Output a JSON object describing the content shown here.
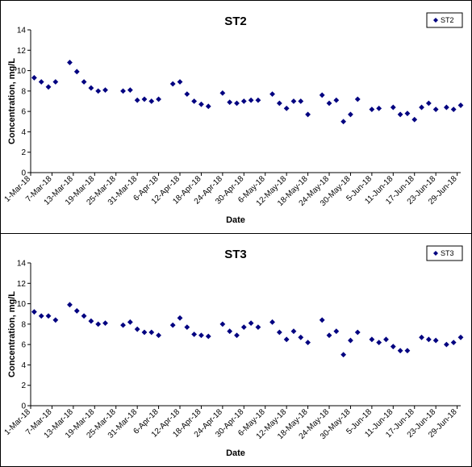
{
  "chart_data": [
    {
      "type": "scatter",
      "title": "ST2",
      "xlabel": "Date",
      "ylabel": "Concentration, mg/L",
      "ylim": [
        0,
        14
      ],
      "yticks": [
        0,
        2,
        4,
        6,
        8,
        10,
        12,
        14
      ],
      "xlim": [
        "2018-03-01",
        "2018-06-30"
      ],
      "xtick_labels": [
        "1-Mar-18",
        "7-Mar-18",
        "13-Mar-18",
        "19-Mar-18",
        "25-Mar-18",
        "31-Mar-18",
        "6-Apr-18",
        "12-Apr-18",
        "18-Apr-18",
        "24-Apr-18",
        "30-Apr-18",
        "6-May-18",
        "12-May-18",
        "18-May-18",
        "24-May-18",
        "30-May-18",
        "5-Jun-18",
        "11-Jun-18",
        "17-Jun-18",
        "23-Jun-18",
        "29-Jun-18"
      ],
      "grid": false,
      "legend_position": "top-right",
      "marker_color": "#000080",
      "series": [
        {
          "name": "ST2",
          "x": [
            "2018-03-02",
            "2018-03-04",
            "2018-03-06",
            "2018-03-08",
            "2018-03-12",
            "2018-03-14",
            "2018-03-16",
            "2018-03-18",
            "2018-03-20",
            "2018-03-22",
            "2018-03-27",
            "2018-03-29",
            "2018-03-31",
            "2018-04-02",
            "2018-04-04",
            "2018-04-06",
            "2018-04-10",
            "2018-04-12",
            "2018-04-14",
            "2018-04-16",
            "2018-04-18",
            "2018-04-20",
            "2018-04-24",
            "2018-04-26",
            "2018-04-28",
            "2018-04-30",
            "2018-05-02",
            "2018-05-04",
            "2018-05-08",
            "2018-05-10",
            "2018-05-12",
            "2018-05-14",
            "2018-05-16",
            "2018-05-18",
            "2018-05-22",
            "2018-05-24",
            "2018-05-26",
            "2018-05-28",
            "2018-05-30",
            "2018-06-01",
            "2018-06-05",
            "2018-06-07",
            "2018-06-11",
            "2018-06-13",
            "2018-06-15",
            "2018-06-17",
            "2018-06-19",
            "2018-06-21",
            "2018-06-23",
            "2018-06-26",
            "2018-06-28",
            "2018-06-30"
          ],
          "y": [
            9.3,
            8.9,
            8.4,
            8.9,
            10.8,
            9.9,
            8.9,
            8.3,
            8.0,
            8.1,
            8.0,
            8.1,
            7.1,
            7.2,
            7.0,
            7.2,
            8.7,
            8.9,
            7.7,
            7.0,
            6.7,
            6.5,
            7.8,
            6.9,
            6.8,
            7.0,
            7.1,
            7.1,
            7.7,
            6.8,
            6.3,
            7.0,
            7.0,
            5.7,
            7.6,
            6.8,
            7.1,
            5.0,
            5.7,
            7.2,
            6.2,
            6.3,
            6.4,
            5.7,
            5.8,
            5.2,
            6.4,
            6.8,
            6.2,
            6.4,
            6.2,
            6.6
          ]
        }
      ]
    },
    {
      "type": "scatter",
      "title": "ST3",
      "xlabel": "Date",
      "ylabel": "Concentration, mg/L",
      "ylim": [
        0,
        14
      ],
      "yticks": [
        0,
        2,
        4,
        6,
        8,
        10,
        12,
        14
      ],
      "xlim": [
        "2018-03-01",
        "2018-06-30"
      ],
      "xtick_labels": [
        "1-Mar-18",
        "7-Mar-18",
        "13-Mar-18",
        "19-Mar-18",
        "25-Mar-18",
        "31-Mar-18",
        "6-Apr-18",
        "12-Apr-18",
        "18-Apr-18",
        "24-Apr-18",
        "30-Apr-18",
        "6-May-18",
        "12-May-18",
        "18-May-18",
        "24-May-18",
        "30-May-18",
        "5-Jun-18",
        "11-Jun-18",
        "17-Jun-18",
        "23-Jun-18",
        "29-Jun-18"
      ],
      "grid": false,
      "legend_position": "top-right",
      "marker_color": "#000080",
      "series": [
        {
          "name": "ST3",
          "x": [
            "2018-03-02",
            "2018-03-04",
            "2018-03-06",
            "2018-03-08",
            "2018-03-12",
            "2018-03-14",
            "2018-03-16",
            "2018-03-18",
            "2018-03-20",
            "2018-03-22",
            "2018-03-27",
            "2018-03-29",
            "2018-03-31",
            "2018-04-02",
            "2018-04-04",
            "2018-04-06",
            "2018-04-10",
            "2018-04-12",
            "2018-04-14",
            "2018-04-16",
            "2018-04-18",
            "2018-04-20",
            "2018-04-24",
            "2018-04-26",
            "2018-04-28",
            "2018-04-30",
            "2018-05-02",
            "2018-05-04",
            "2018-05-08",
            "2018-05-10",
            "2018-05-12",
            "2018-05-14",
            "2018-05-16",
            "2018-05-18",
            "2018-05-22",
            "2018-05-24",
            "2018-05-26",
            "2018-05-28",
            "2018-05-30",
            "2018-06-01",
            "2018-06-05",
            "2018-06-07",
            "2018-06-09",
            "2018-06-11",
            "2018-06-13",
            "2018-06-15",
            "2018-06-19",
            "2018-06-21",
            "2018-06-23",
            "2018-06-26",
            "2018-06-28",
            "2018-06-30"
          ],
          "y": [
            9.2,
            8.8,
            8.8,
            8.4,
            9.9,
            9.3,
            8.8,
            8.3,
            8.0,
            8.1,
            7.9,
            8.2,
            7.5,
            7.2,
            7.2,
            6.9,
            7.9,
            8.6,
            7.7,
            7.0,
            6.9,
            6.8,
            8.0,
            7.3,
            6.9,
            7.7,
            8.1,
            7.7,
            8.2,
            7.2,
            6.5,
            7.3,
            6.7,
            6.2,
            8.4,
            6.9,
            7.3,
            5.0,
            6.4,
            7.2,
            6.5,
            6.2,
            6.5,
            5.8,
            5.4,
            5.4,
            6.7,
            6.5,
            6.4,
            6.0,
            6.2,
            6.7
          ]
        }
      ]
    }
  ]
}
